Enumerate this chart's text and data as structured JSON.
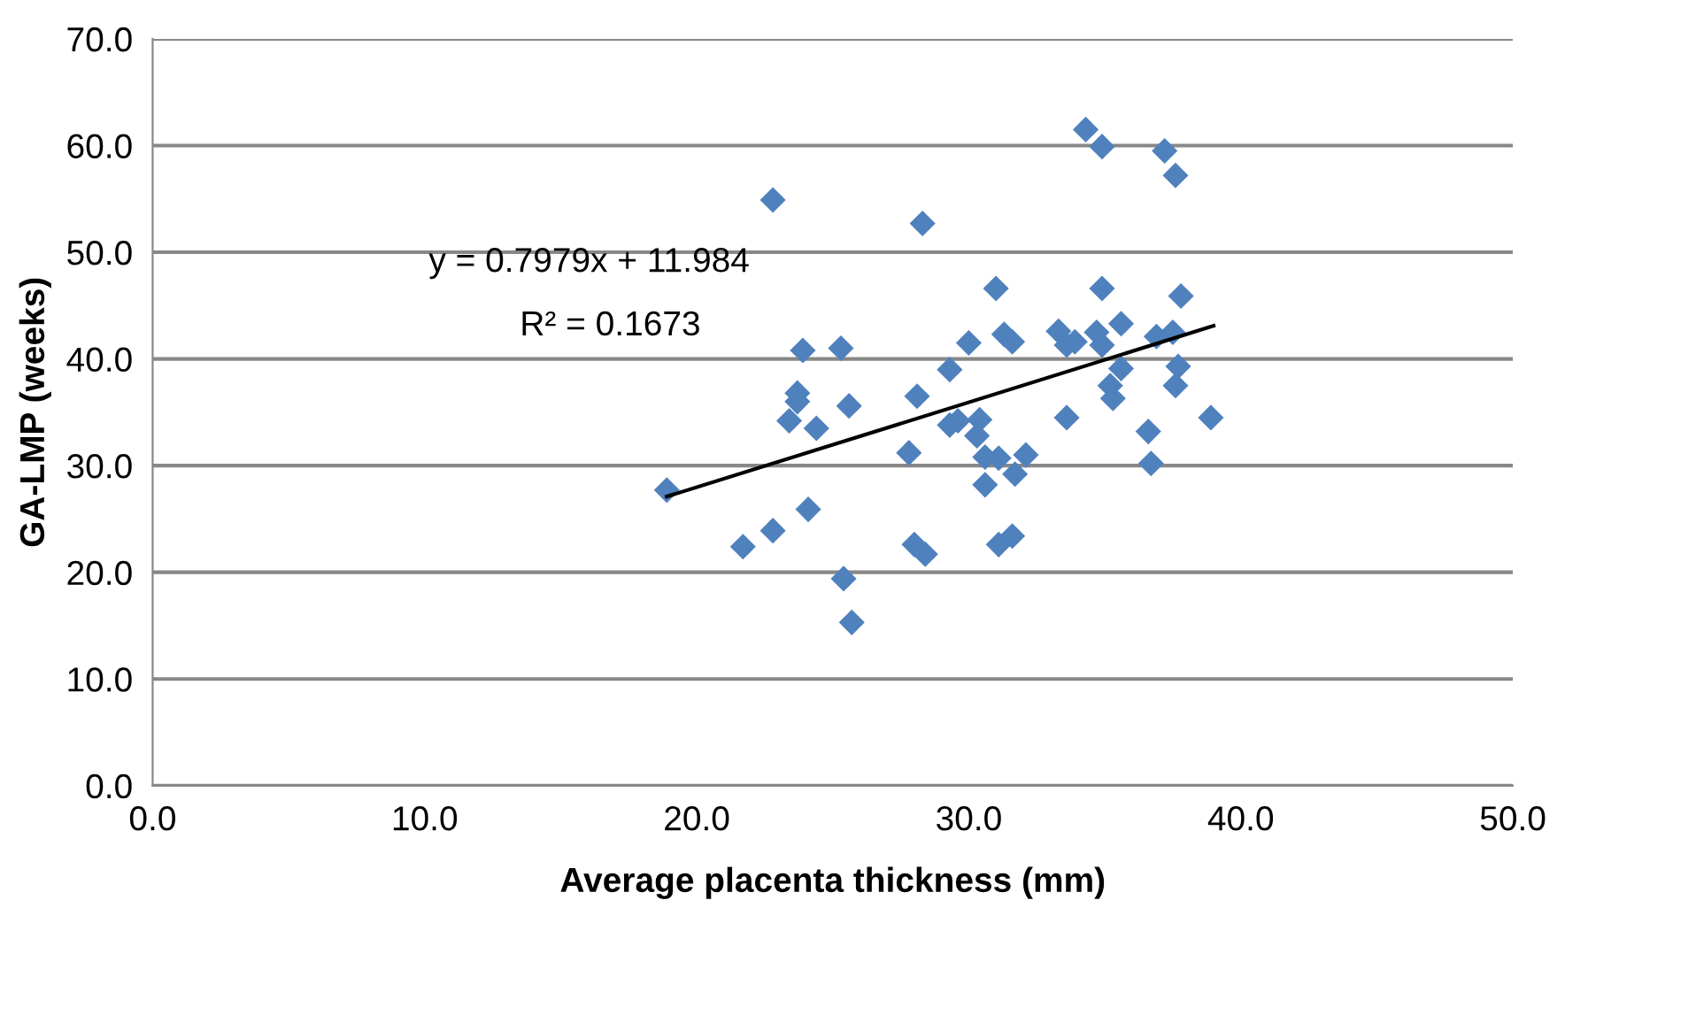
{
  "chart_data": {
    "type": "scatter",
    "xlabel": "Average placenta thickness (mm)",
    "ylabel": "GA-LMP (weeks)",
    "xlim": [
      0,
      50
    ],
    "ylim": [
      0,
      70
    ],
    "xticks": [
      {
        "value": 0,
        "label": "0.0"
      },
      {
        "value": 10,
        "label": "10.0"
      },
      {
        "value": 20,
        "label": "20.0"
      },
      {
        "value": 30,
        "label": "30.0"
      },
      {
        "value": 40,
        "label": "40.0"
      },
      {
        "value": 50,
        "label": "50.0"
      }
    ],
    "yticks": [
      {
        "value": 0,
        "label": "0.0"
      },
      {
        "value": 10,
        "label": "10.0"
      },
      {
        "value": 20,
        "label": "20.0"
      },
      {
        "value": 30,
        "label": "30.0"
      },
      {
        "value": 40,
        "label": "40.0"
      },
      {
        "value": 50,
        "label": "50.0"
      },
      {
        "value": 60,
        "label": "60.0"
      },
      {
        "value": 70,
        "label": "70.0"
      }
    ],
    "grid": "y",
    "series": [
      {
        "marker": "diamond",
        "color": "#4f81bd",
        "x": [
          18.9,
          21.7,
          22.8,
          22.8,
          23.4,
          23.7,
          23.7,
          23.9,
          24.1,
          24.4,
          25.3,
          25.6,
          25.4,
          25.7,
          27.8,
          28.0,
          28.1,
          28.3,
          28.4,
          29.3,
          29.3,
          29.6,
          30.0,
          30.3,
          30.4,
          30.6,
          30.6,
          31.0,
          31.1,
          31.1,
          31.6,
          31.3,
          31.6,
          31.7,
          32.1,
          33.3,
          33.6,
          33.9,
          34.7,
          34.9,
          35.6,
          36.9,
          37.5,
          35.6,
          37.7,
          37.6,
          35.2,
          35.3,
          33.6,
          38.9,
          36.6,
          36.7,
          34.3,
          34.9,
          37.2,
          37.6,
          34.9,
          37.8
        ],
        "values": [
          27.7,
          22.4,
          54.9,
          23.9,
          34.2,
          36.8,
          36.0,
          40.8,
          25.9,
          33.5,
          41.0,
          35.6,
          19.4,
          15.3,
          31.2,
          22.6,
          36.5,
          52.7,
          21.7,
          39.0,
          33.8,
          34.2,
          41.5,
          32.8,
          34.3,
          30.8,
          28.2,
          46.6,
          30.7,
          22.6,
          23.4,
          42.3,
          41.6,
          29.2,
          31.0,
          42.6,
          41.3,
          41.6,
          42.5,
          41.3,
          43.3,
          42.1,
          42.5,
          39.1,
          39.3,
          37.5,
          37.5,
          36.3,
          34.5,
          34.5,
          33.2,
          30.2,
          61.5,
          59.9,
          59.5,
          57.2,
          46.6,
          45.9
        ]
      },
      {
        "type": "line",
        "color": "#000000",
        "x": [
          18.9,
          39.0
        ],
        "values": [
          27.1,
          43.1
        ]
      }
    ],
    "annotations": [
      "y = 0.7979x + 11.984",
      "R² = 0.1673"
    ]
  }
}
